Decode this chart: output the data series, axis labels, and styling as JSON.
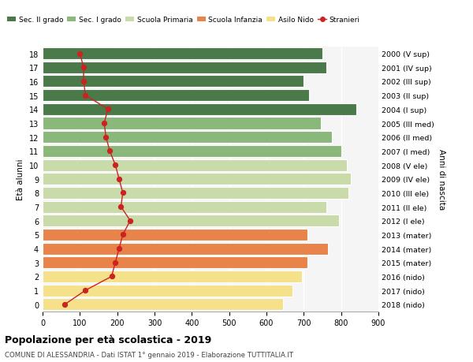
{
  "ages": [
    0,
    1,
    2,
    3,
    4,
    5,
    6,
    7,
    8,
    9,
    10,
    11,
    12,
    13,
    14,
    15,
    16,
    17,
    18
  ],
  "years": [
    "2018 (nido)",
    "2017 (nido)",
    "2016 (nido)",
    "2015 (mater)",
    "2014 (mater)",
    "2013 (mater)",
    "2012 (I ele)",
    "2011 (II ele)",
    "2010 (III ele)",
    "2009 (IV ele)",
    "2008 (V ele)",
    "2007 (I med)",
    "2006 (II med)",
    "2005 (III med)",
    "2004 (I sup)",
    "2003 (II sup)",
    "2002 (III sup)",
    "2001 (IV sup)",
    "2000 (V sup)"
  ],
  "bar_values": [
    645,
    670,
    695,
    710,
    765,
    710,
    795,
    760,
    820,
    825,
    815,
    800,
    775,
    745,
    840,
    715,
    700,
    760,
    750
  ],
  "stranieri_values": [
    60,
    115,
    185,
    195,
    205,
    215,
    235,
    210,
    215,
    205,
    195,
    180,
    170,
    165,
    175,
    115,
    110,
    110,
    100
  ],
  "bar_colors": [
    "#f5e18a",
    "#f5e18a",
    "#f5e18a",
    "#e8834a",
    "#e8834a",
    "#e8834a",
    "#c8dba8",
    "#c8dba8",
    "#c8dba8",
    "#c8dba8",
    "#c8dba8",
    "#8ab87a",
    "#8ab87a",
    "#8ab87a",
    "#4a7a4a",
    "#4a7a4a",
    "#4a7a4a",
    "#4a7a4a",
    "#4a7a4a"
  ],
  "legend_labels": [
    "Sec. II grado",
    "Sec. I grado",
    "Scuola Primaria",
    "Scuola Infanzia",
    "Asilo Nido",
    "Stranieri"
  ],
  "legend_colors": [
    "#4a7a4a",
    "#8ab87a",
    "#c8dba8",
    "#e8834a",
    "#f5e18a",
    "#cc2222"
  ],
  "ylabel": "Età alunni",
  "right_label": "Anni di nascita",
  "title": "Popolazione per età scolastica - 2019",
  "subtitle": "COMUNE DI ALESSANDRIA - Dati ISTAT 1° gennaio 2019 - Elaborazione TUTTITALIA.IT",
  "xlim": [
    0,
    900
  ],
  "grid_color": "#cccccc",
  "stranieri_color": "#cc2222",
  "plot_bg": "#f5f5f5"
}
